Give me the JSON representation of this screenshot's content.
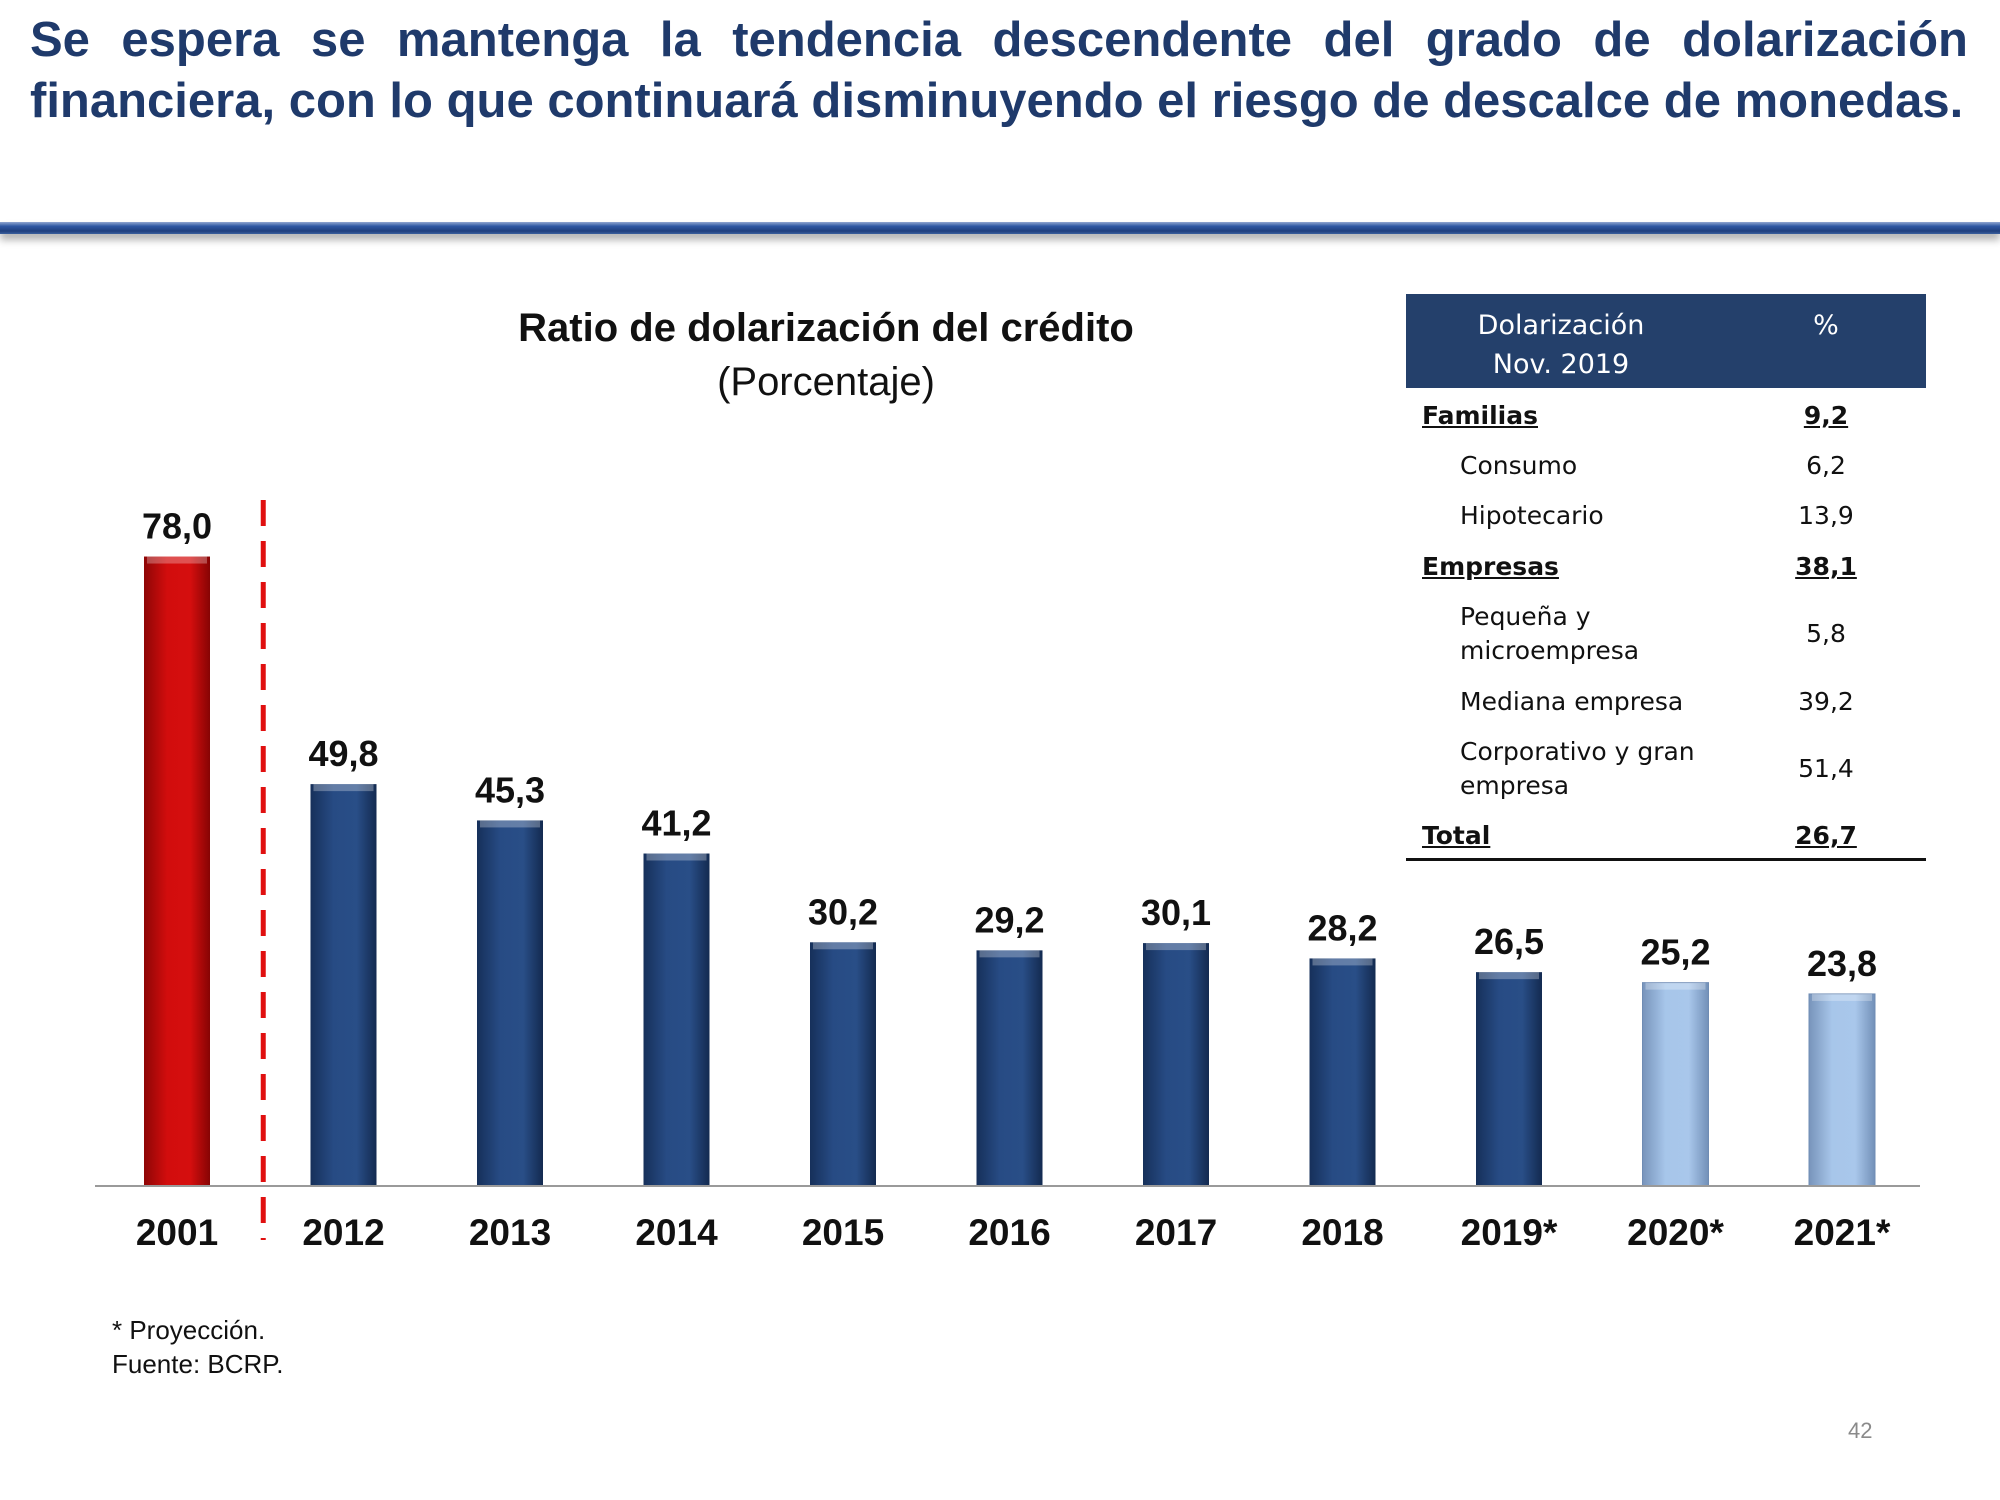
{
  "headline": "Se espera se mantenga la tendencia descendente del grado de dolarización financiera, con lo que continuará disminuyendo el riesgo de descalce de monedas.",
  "chart_data": {
    "type": "bar",
    "title": "Ratio de dolarización del crédito",
    "subtitle": "(Porcentaje)",
    "categories": [
      "2001",
      "2012",
      "2013",
      "2014",
      "2015",
      "2016",
      "2017",
      "2018",
      "2019*",
      "2020*",
      "2021*"
    ],
    "values": [
      78.0,
      49.8,
      45.3,
      41.2,
      30.2,
      29.2,
      30.1,
      28.2,
      26.5,
      25.2,
      23.8
    ],
    "value_labels": [
      "78,0",
      "49,8",
      "45,3",
      "41,2",
      "30,2",
      "29,2",
      "30,1",
      "28,2",
      "26,5",
      "25,2",
      "23,8"
    ],
    "bar_kinds": [
      "reference",
      "actual",
      "actual",
      "actual",
      "actual",
      "actual",
      "actual",
      "actual",
      "actual",
      "projection",
      "projection"
    ],
    "colors": {
      "reference": "#cc0a0a",
      "actual": "#24477c",
      "projection": "#9dbde3",
      "divider": "#e01010"
    },
    "ylim": [
      0,
      80
    ],
    "grid": false,
    "xlabel": "",
    "ylabel": ""
  },
  "table": {
    "header": [
      "Dolarización",
      "Nov. 2019"
    ],
    "header_pct": "%",
    "rows": [
      {
        "label": "Familias",
        "value": "9,2",
        "type": "category"
      },
      {
        "label": "Consumo",
        "value": "6,2",
        "type": "item"
      },
      {
        "label": "Hipotecario",
        "value": "13,9",
        "type": "item"
      },
      {
        "label": "Empresas",
        "value": "38,1",
        "type": "category"
      },
      {
        "label": "Pequeña y",
        "label2": "microempresa",
        "value": "5,8",
        "type": "item"
      },
      {
        "label": "Mediana empresa",
        "value": "39,2",
        "type": "item"
      },
      {
        "label": "Corporativo y gran",
        "label2": "empresa",
        "value": "51,4",
        "type": "item"
      },
      {
        "label": "Total",
        "value": "26,7",
        "type": "category"
      }
    ]
  },
  "notes": {
    "projection": "* Proyección.",
    "source": "Fuente: BCRP."
  },
  "page_number": "42"
}
